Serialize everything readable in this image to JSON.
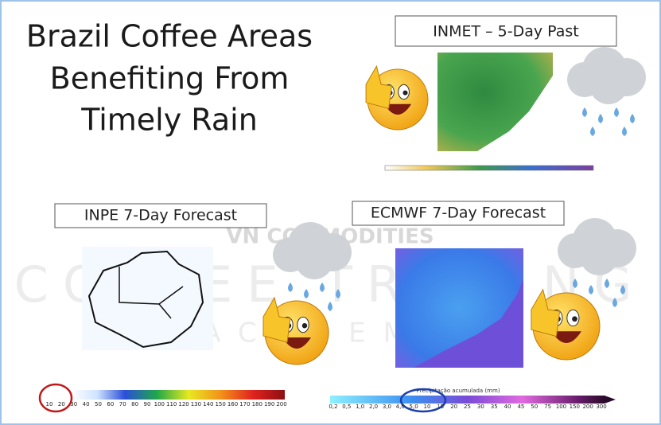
{
  "title": [
    "Brazil Coffee Areas",
    "Benefiting From",
    "Timely Rain"
  ],
  "watermarks": {
    "brand": "VN COMMODITIES",
    "line1": "COFFEE TRADING",
    "line2": "ACADEMY"
  },
  "panels": {
    "inmet": {
      "label": "INMET – 5-Day Past"
    },
    "inpe": {
      "label": "INPE 7-Day Forecast",
      "scale": [
        "10",
        "20",
        "30",
        "40",
        "50",
        "60",
        "70",
        "80",
        "90",
        "100",
        "110",
        "120",
        "130",
        "140",
        "150",
        "160",
        "170",
        "180",
        "190",
        "200"
      ]
    },
    "ecmwf": {
      "label": "ECMWF 7-Day Forecast",
      "scale_title": "Precipitação acumulada (mm)",
      "scale": [
        "0,2",
        "0,5",
        "1,0",
        "2,0",
        "3,0",
        "4,0",
        "5,0",
        "10",
        "15",
        "20",
        "25",
        "30",
        "35",
        "40",
        "45",
        "50",
        "75",
        "100",
        "150",
        "200",
        "300"
      ]
    }
  }
}
